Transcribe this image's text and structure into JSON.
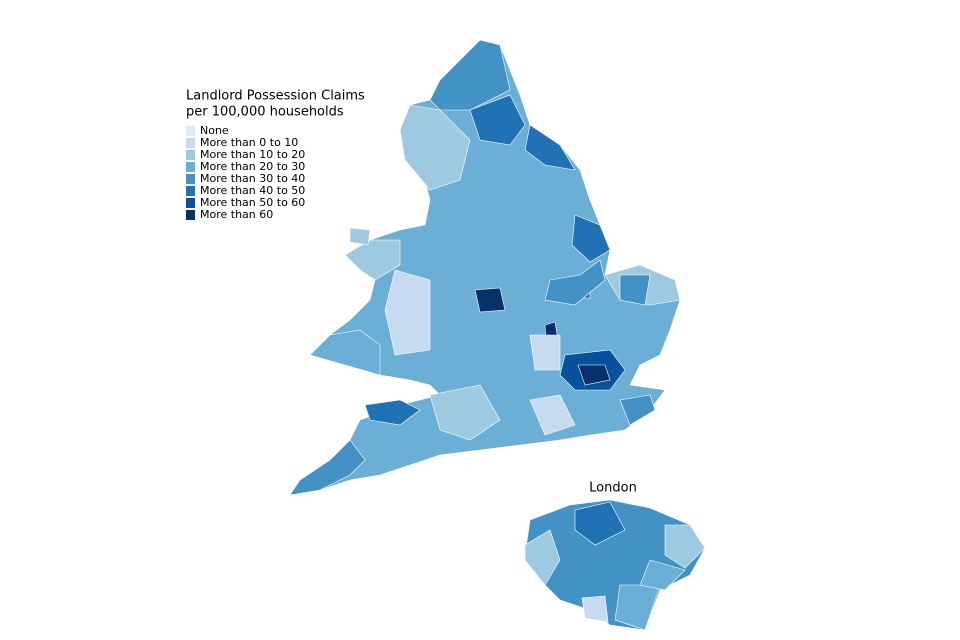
{
  "legend": {
    "title": [
      "Landlord Possession Claims",
      "per 100,000 households"
    ],
    "entries": [
      {
        "label": "None",
        "color": "#deebf7"
      },
      {
        "label": "More than 0 to 10",
        "color": "#c6dbef"
      },
      {
        "label": "More than 10 to 20",
        "color": "#9ecae1"
      },
      {
        "label": "More than 20 to 30",
        "color": "#6baed6"
      },
      {
        "label": "More than 30 to 40",
        "color": "#4292c6"
      },
      {
        "label": "More than 40 to 50",
        "color": "#2171b5"
      },
      {
        "label": "More than 50 to 60",
        "color": "#08519c"
      },
      {
        "label": "More than 60",
        "color": "#08306b"
      }
    ]
  },
  "inset": {
    "title": "London"
  }
}
